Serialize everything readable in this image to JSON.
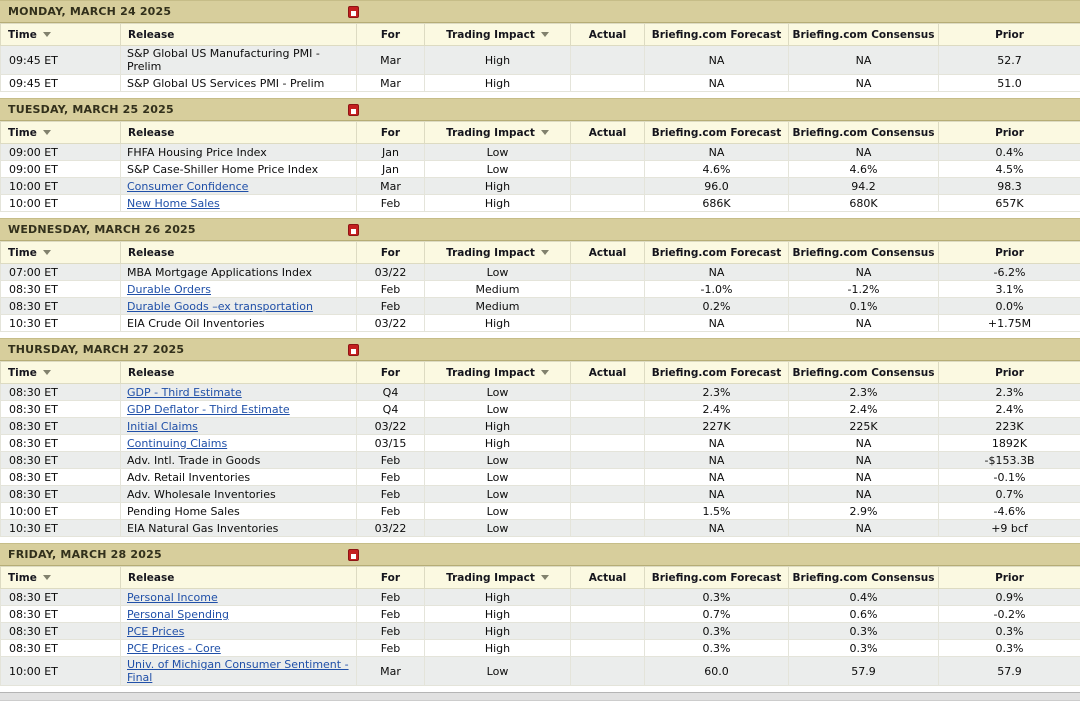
{
  "colors": {
    "day_header_bg": "#d7ce9c",
    "column_header_bg": "#fbf9e1",
    "alt_row_bg": "#ebedec",
    "link_color": "#2050a8",
    "day_icon_red": "#c42020"
  },
  "icons": {
    "day_header_icon": "calendar-export-icon",
    "sort_icon": "sort-arrow-down"
  },
  "columns": [
    {
      "key": "time",
      "label": "Time",
      "sortable": true
    },
    {
      "key": "release",
      "label": "Release",
      "sortable": false
    },
    {
      "key": "for",
      "label": "For",
      "sortable": false
    },
    {
      "key": "impact",
      "label": "Trading Impact",
      "sortable": true
    },
    {
      "key": "actual",
      "label": "Actual",
      "sortable": false
    },
    {
      "key": "forecast",
      "label": "Briefing.com Forecast",
      "sortable": false
    },
    {
      "key": "consensus",
      "label": "Briefing.com Consensus",
      "sortable": false
    },
    {
      "key": "prior",
      "label": "Prior",
      "sortable": false
    }
  ],
  "days": [
    {
      "title": "MONDAY, MARCH 24 2025",
      "rows": [
        {
          "time": "09:45 ET",
          "release": "S&P Global US Manufacturing PMI - Prelim",
          "link": false,
          "for": "Mar",
          "impact": "High",
          "actual": "",
          "forecast": "NA",
          "consensus": "NA",
          "prior": "52.7"
        },
        {
          "time": "09:45 ET",
          "release": "S&P Global US Services PMI - Prelim",
          "link": false,
          "for": "Mar",
          "impact": "High",
          "actual": "",
          "forecast": "NA",
          "consensus": "NA",
          "prior": "51.0"
        }
      ]
    },
    {
      "title": "TUESDAY, MARCH 25 2025",
      "rows": [
        {
          "time": "09:00 ET",
          "release": "FHFA Housing Price Index",
          "link": false,
          "for": "Jan",
          "impact": "Low",
          "actual": "",
          "forecast": "NA",
          "consensus": "NA",
          "prior": "0.4%"
        },
        {
          "time": "09:00 ET",
          "release": "S&P Case-Shiller Home Price Index",
          "link": false,
          "for": "Jan",
          "impact": "Low",
          "actual": "",
          "forecast": "4.6%",
          "consensus": "4.6%",
          "prior": "4.5%"
        },
        {
          "time": "10:00 ET",
          "release": "Consumer Confidence",
          "link": true,
          "for": "Mar",
          "impact": "High",
          "actual": "",
          "forecast": "96.0",
          "consensus": "94.2",
          "prior": "98.3"
        },
        {
          "time": "10:00 ET",
          "release": "New Home Sales",
          "link": true,
          "for": "Feb",
          "impact": "High",
          "actual": "",
          "forecast": "686K",
          "consensus": "680K",
          "prior": "657K"
        }
      ]
    },
    {
      "title": "WEDNESDAY, MARCH 26 2025",
      "rows": [
        {
          "time": "07:00 ET",
          "release": "MBA Mortgage Applications Index",
          "link": false,
          "for": "03/22",
          "impact": "Low",
          "actual": "",
          "forecast": "NA",
          "consensus": "NA",
          "prior": "-6.2%"
        },
        {
          "time": "08:30 ET",
          "release": "Durable Orders",
          "link": true,
          "for": "Feb",
          "impact": "Medium",
          "actual": "",
          "forecast": "-1.0%",
          "consensus": "-1.2%",
          "prior": "3.1%"
        },
        {
          "time": "08:30 ET",
          "release": "Durable Goods –ex transportation",
          "link": true,
          "for": "Feb",
          "impact": "Medium",
          "actual": "",
          "forecast": "0.2%",
          "consensus": "0.1%",
          "prior": "0.0%"
        },
        {
          "time": "10:30 ET",
          "release": "EIA Crude Oil Inventories",
          "link": false,
          "for": "03/22",
          "impact": "High",
          "actual": "",
          "forecast": "NA",
          "consensus": "NA",
          "prior": "+1.75M"
        }
      ]
    },
    {
      "title": "THURSDAY, MARCH 27 2025",
      "rows": [
        {
          "time": "08:30 ET",
          "release": "GDP - Third Estimate",
          "link": true,
          "for": "Q4",
          "impact": "Low",
          "actual": "",
          "forecast": "2.3%",
          "consensus": "2.3%",
          "prior": "2.3%"
        },
        {
          "time": "08:30 ET",
          "release": "GDP Deflator - Third Estimate",
          "link": true,
          "for": "Q4",
          "impact": "Low",
          "actual": "",
          "forecast": "2.4%",
          "consensus": "2.4%",
          "prior": "2.4%"
        },
        {
          "time": "08:30 ET",
          "release": "Initial Claims",
          "link": true,
          "for": "03/22",
          "impact": "High",
          "actual": "",
          "forecast": "227K",
          "consensus": "225K",
          "prior": "223K"
        },
        {
          "time": "08:30 ET",
          "release": "Continuing Claims",
          "link": true,
          "for": "03/15",
          "impact": "High",
          "actual": "",
          "forecast": "NA",
          "consensus": "NA",
          "prior": "1892K"
        },
        {
          "time": "08:30 ET",
          "release": "Adv. Intl. Trade in Goods",
          "link": false,
          "for": "Feb",
          "impact": "Low",
          "actual": "",
          "forecast": "NA",
          "consensus": "NA",
          "prior": "-$153.3B"
        },
        {
          "time": "08:30 ET",
          "release": "Adv. Retail Inventories",
          "link": false,
          "for": "Feb",
          "impact": "Low",
          "actual": "",
          "forecast": "NA",
          "consensus": "NA",
          "prior": "-0.1%"
        },
        {
          "time": "08:30 ET",
          "release": "Adv. Wholesale Inventories",
          "link": false,
          "for": "Feb",
          "impact": "Low",
          "actual": "",
          "forecast": "NA",
          "consensus": "NA",
          "prior": "0.7%"
        },
        {
          "time": "10:00 ET",
          "release": "Pending Home Sales",
          "link": false,
          "for": "Feb",
          "impact": "Low",
          "actual": "",
          "forecast": "1.5%",
          "consensus": "2.9%",
          "prior": "-4.6%"
        },
        {
          "time": "10:30 ET",
          "release": "EIA Natural Gas Inventories",
          "link": false,
          "for": "03/22",
          "impact": "Low",
          "actual": "",
          "forecast": "NA",
          "consensus": "NA",
          "prior": "+9 bcf"
        }
      ]
    },
    {
      "title": "FRIDAY, MARCH 28 2025",
      "rows": [
        {
          "time": "08:30 ET",
          "release": "Personal Income",
          "link": true,
          "for": "Feb",
          "impact": "High",
          "actual": "",
          "forecast": "0.3%",
          "consensus": "0.4%",
          "prior": "0.9%"
        },
        {
          "time": "08:30 ET",
          "release": "Personal Spending",
          "link": true,
          "for": "Feb",
          "impact": "High",
          "actual": "",
          "forecast": "0.7%",
          "consensus": "0.6%",
          "prior": "-0.2%"
        },
        {
          "time": "08:30 ET",
          "release": "PCE Prices",
          "link": true,
          "for": "Feb",
          "impact": "High",
          "actual": "",
          "forecast": "0.3%",
          "consensus": "0.3%",
          "prior": "0.3%"
        },
        {
          "time": "08:30 ET",
          "release": "PCE Prices - Core",
          "link": true,
          "for": "Feb",
          "impact": "High",
          "actual": "",
          "forecast": "0.3%",
          "consensus": "0.3%",
          "prior": "0.3%"
        },
        {
          "time": "10:00 ET",
          "release": "Univ. of Michigan Consumer Sentiment - Final",
          "link": true,
          "for": "Mar",
          "impact": "Low",
          "actual": "",
          "forecast": "60.0",
          "consensus": "57.9",
          "prior": "57.9"
        }
      ]
    }
  ]
}
